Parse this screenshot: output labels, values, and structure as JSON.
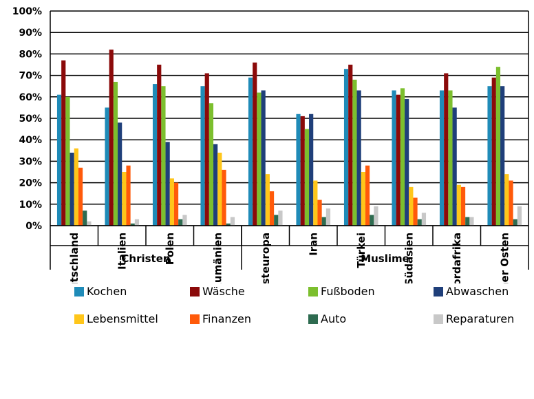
{
  "chart_data": {
    "type": "bar",
    "title": "",
    "xlabel": "",
    "ylabel": "",
    "ylim": [
      0,
      100
    ],
    "yticks": [
      "0%",
      "10%",
      "20%",
      "30%",
      "40%",
      "50%",
      "60%",
      "70%",
      "80%",
      "90%",
      "100%"
    ],
    "grid": true,
    "legend_position": "bottom",
    "categories": [
      "Deutschland",
      "Italien",
      "Polen",
      "Rumänien",
      "Südosteuropa",
      "Iran",
      "Türkei",
      "Südasien",
      "Nordafrika",
      "Naher Osten"
    ],
    "groups": [
      {
        "label": "Christen",
        "count": 4
      },
      {
        "label": "Muslime",
        "count": 6
      }
    ],
    "series": [
      {
        "name": "Kochen",
        "color": "#1f8bb8",
        "values": [
          61,
          55,
          66,
          65,
          69,
          52,
          73,
          63,
          63,
          65
        ]
      },
      {
        "name": "Wäsche",
        "color": "#8b0a0a",
        "values": [
          77,
          82,
          75,
          71,
          76,
          51,
          75,
          61,
          71,
          69
        ]
      },
      {
        "name": "Fußboden",
        "color": "#7cbf2e",
        "values": [
          60,
          67,
          65,
          57,
          62,
          45,
          68,
          64,
          63,
          74
        ]
      },
      {
        "name": "Abwaschen",
        "color": "#1f3f7a",
        "values": [
          34,
          48,
          39,
          38,
          63,
          52,
          63,
          59,
          55,
          65
        ]
      },
      {
        "name": "Lebensmittel",
        "color": "#ffc61a",
        "values": [
          36,
          25,
          22,
          34,
          24,
          21,
          25,
          18,
          19,
          24
        ]
      },
      {
        "name": "Finanzen",
        "color": "#ff5a0a",
        "values": [
          27,
          28,
          20,
          26,
          16,
          12,
          28,
          13,
          18,
          21
        ]
      },
      {
        "name": "Auto",
        "color": "#2e6b50",
        "values": [
          7,
          1,
          3,
          1,
          5,
          4,
          5,
          3,
          4,
          3
        ]
      },
      {
        "name": "Reparaturen",
        "color": "#c8c8c8",
        "values": [
          2,
          3,
          5,
          4,
          7,
          8,
          9,
          6,
          4,
          9
        ]
      }
    ]
  }
}
